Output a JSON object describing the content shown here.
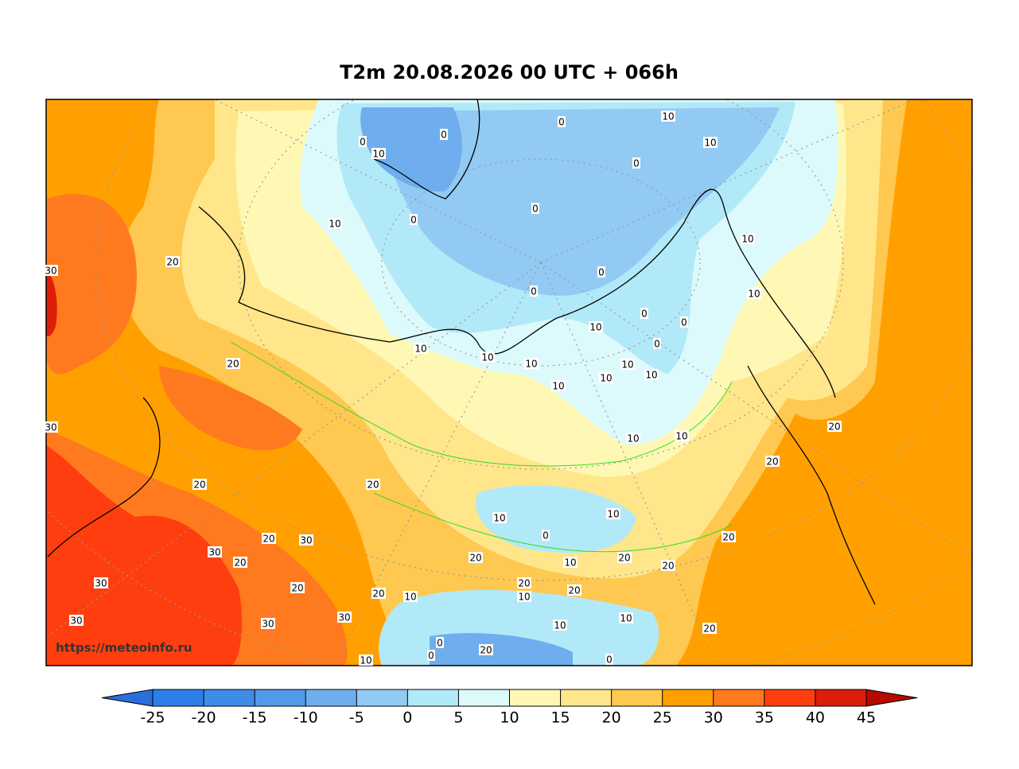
{
  "title": "T2m 20.08.2026 00 UTC + 066h",
  "watermark": "https://meteoinfo.ru",
  "colorbar": {
    "ticks": [
      -25,
      -20,
      -15,
      -10,
      -5,
      0,
      5,
      10,
      15,
      20,
      25,
      30,
      35,
      40,
      45
    ],
    "colors": [
      "#2a6fdc",
      "#2d7fe8",
      "#3e8ce8",
      "#519ae9",
      "#6eaeee",
      "#92caf3",
      "#b2e9f8",
      "#dcfafc",
      "#fff8b4",
      "#ffe68a",
      "#ffc850",
      "#ffa000",
      "#ff7a1e",
      "#ff3e10",
      "#dc1e0a",
      "#b40a00"
    ]
  },
  "contour_labels": [
    0,
    10,
    0,
    0,
    10,
    10,
    0,
    0,
    0,
    10,
    10,
    20,
    30,
    0,
    0,
    10,
    0,
    0,
    10,
    0,
    10,
    10,
    10,
    10,
    20,
    10,
    10,
    10,
    30,
    20,
    10,
    10,
    20,
    20,
    20,
    10,
    10,
    0,
    20,
    30,
    20,
    30,
    20,
    20,
    20,
    10,
    20,
    30,
    20,
    20,
    20,
    20,
    10,
    10,
    10,
    30,
    30,
    30,
    10,
    20,
    0,
    20,
    0,
    10,
    0
  ]
}
